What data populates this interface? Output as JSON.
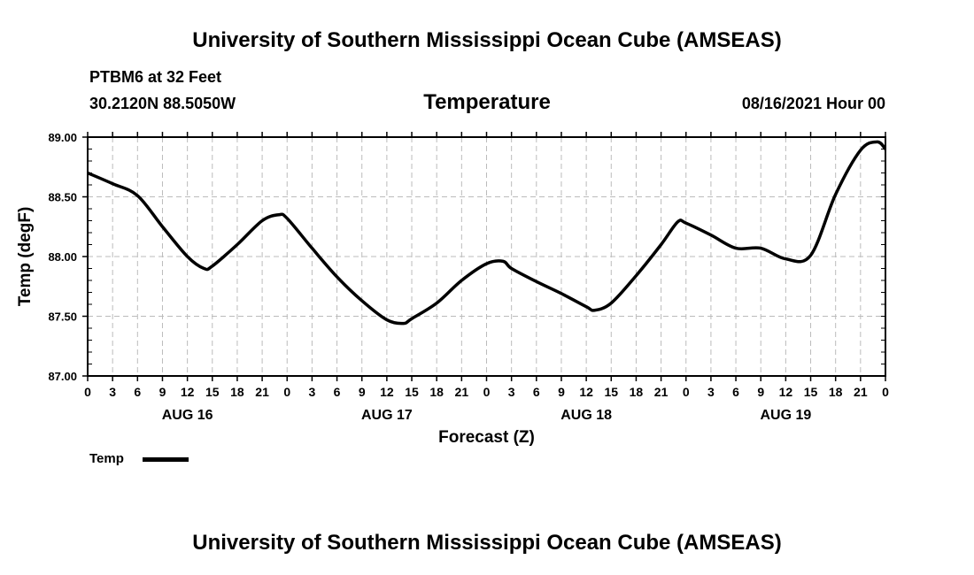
{
  "header": {
    "title": "University of Southern Mississippi Ocean Cube (AMSEAS)",
    "station": "PTBM6 at 32 Feet",
    "coords": "30.2120N  88.5050W",
    "variable": "Temperature",
    "datetime": "08/16/2021 Hour 00"
  },
  "footer": {
    "title": "University of Southern Mississippi Ocean Cube (AMSEAS)"
  },
  "legend": {
    "label": "Temp"
  },
  "chart_data": {
    "type": "line",
    "title": "Temperature",
    "xlabel": "Forecast (Z)",
    "ylabel": "Temp (degF)",
    "ylim": [
      87.0,
      89.0
    ],
    "yticks": [
      "87.00",
      "87.50",
      "88.00",
      "88.50",
      "89.00"
    ],
    "xlim_hours": [
      0,
      96
    ],
    "xtick_labels": [
      "0",
      "3",
      "6",
      "9",
      "12",
      "15",
      "18",
      "21",
      "0",
      "3",
      "6",
      "9",
      "12",
      "15",
      "18",
      "21",
      "0",
      "3",
      "6",
      "9",
      "12",
      "15",
      "18",
      "21",
      "0",
      "3",
      "6",
      "9",
      "12",
      "15",
      "18",
      "21",
      "0"
    ],
    "date_labels": [
      {
        "label": "AUG 16",
        "hour": 12
      },
      {
        "label": "AUG 17",
        "hour": 36
      },
      {
        "label": "AUG 18",
        "hour": 60
      },
      {
        "label": "AUG 19",
        "hour": 84
      }
    ],
    "grid": true,
    "legend_position": "bottom-left",
    "series": [
      {
        "name": "Temp",
        "color": "#000000",
        "hours": [
          0,
          3,
          6,
          9,
          12,
          14,
          15,
          18,
          21,
          23,
          24,
          27,
          30,
          33,
          36,
          38,
          39,
          42,
          45,
          48,
          50,
          51,
          54,
          57,
          60,
          61,
          63,
          66,
          69,
          71,
          72,
          75,
          78,
          81,
          84,
          87,
          90,
          93,
          95,
          96
        ],
        "values": [
          88.7,
          88.61,
          88.51,
          88.25,
          88.0,
          87.9,
          87.92,
          88.1,
          88.3,
          88.35,
          88.32,
          88.07,
          87.83,
          87.63,
          87.47,
          87.44,
          87.48,
          87.61,
          87.8,
          87.94,
          87.96,
          87.9,
          87.79,
          87.69,
          87.58,
          87.55,
          87.61,
          87.84,
          88.1,
          88.29,
          88.28,
          88.18,
          88.07,
          88.07,
          87.98,
          88.01,
          88.52,
          88.89,
          88.96,
          88.9
        ]
      }
    ]
  }
}
